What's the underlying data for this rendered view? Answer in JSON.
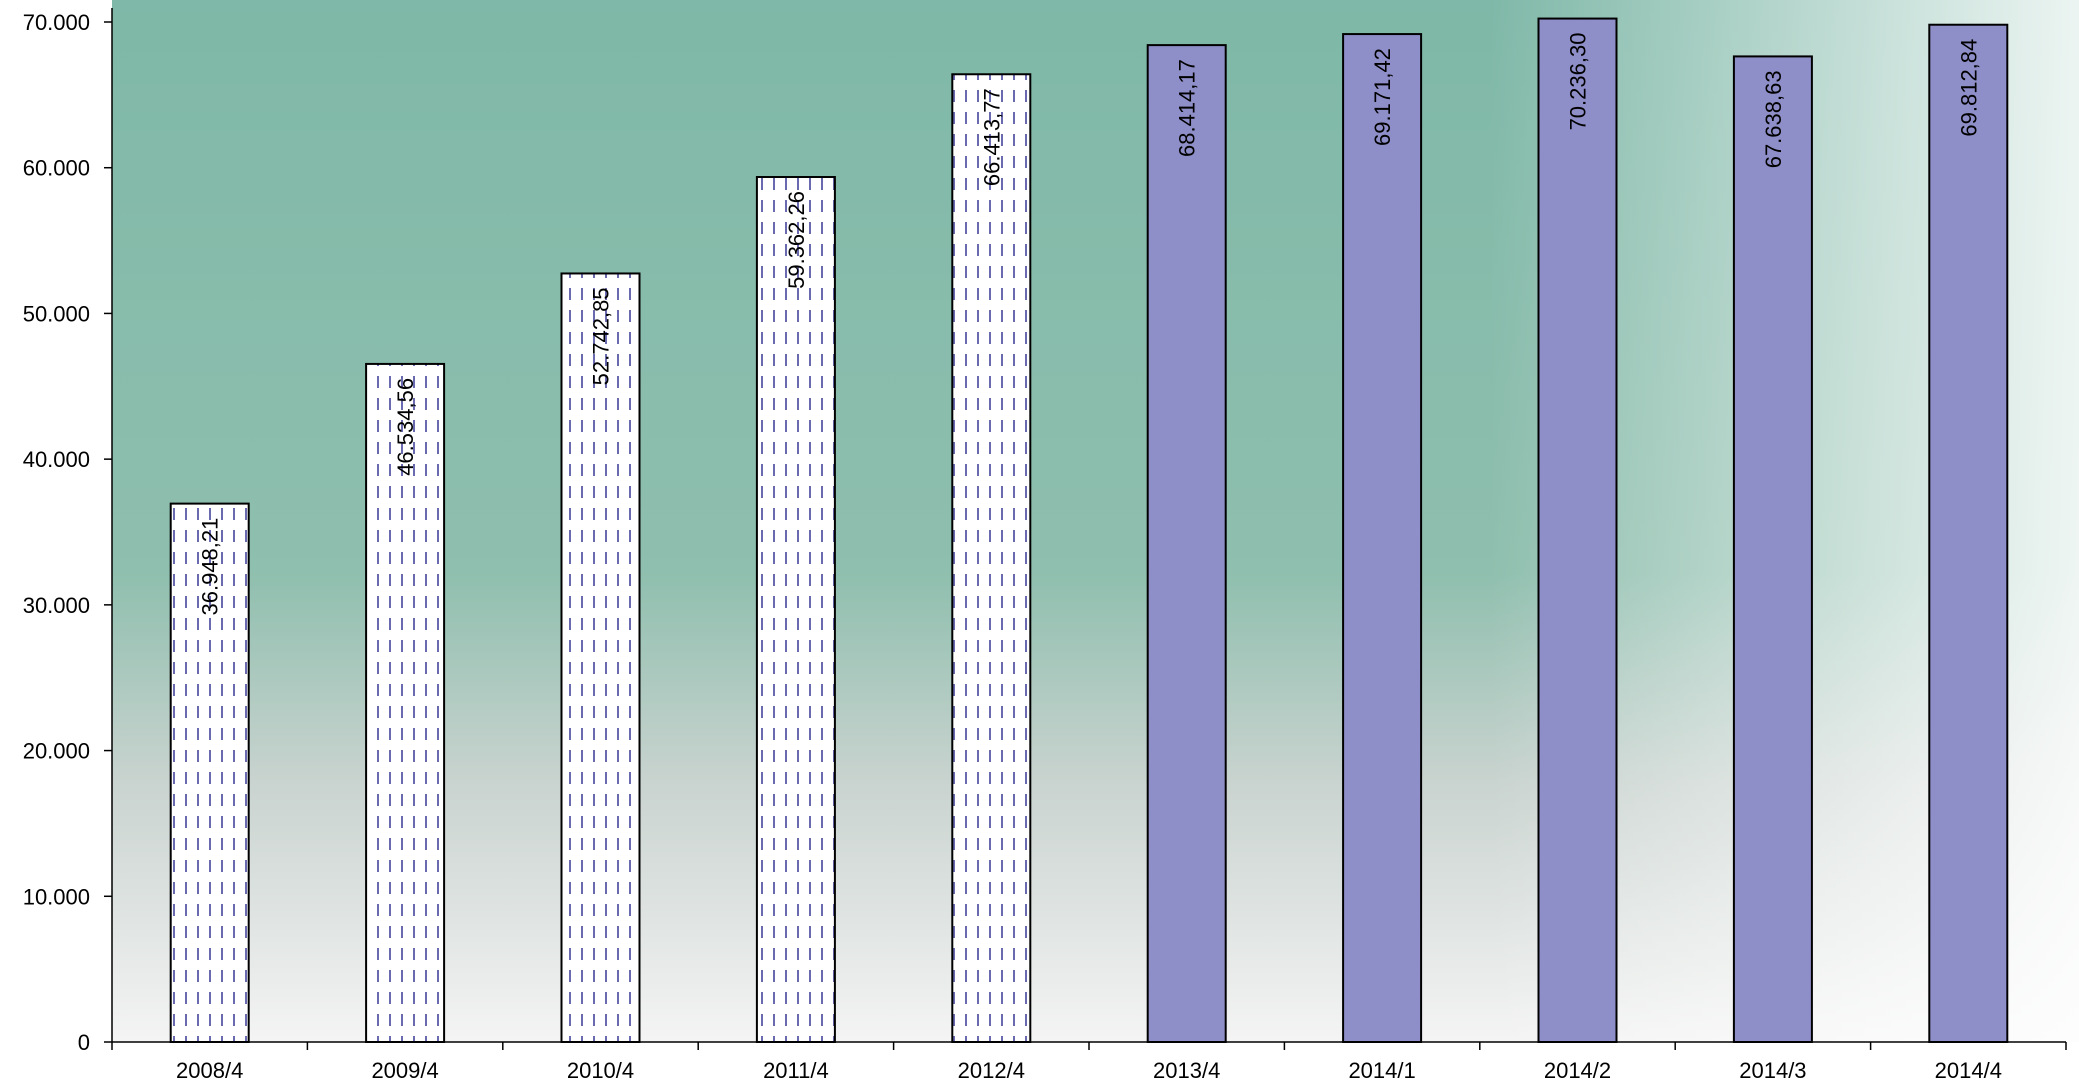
{
  "chart_data": {
    "type": "bar",
    "categories": [
      "2008/4",
      "2009/4",
      "2010/4",
      "2011/4",
      "2012/4",
      "2013/4",
      "2014/1",
      "2014/2",
      "2014/3",
      "2014/4"
    ],
    "values": [
      36948.21,
      46534.56,
      52742.85,
      59362.26,
      66413.77,
      68414.17,
      69171.42,
      70236.3,
      67638.63,
      69812.84
    ],
    "data_labels": [
      "36.948,21",
      "46.534,56",
      "52.742,85",
      "59.362,26",
      "66.413,77",
      "68.414,17",
      "69.171,42",
      "70.236,30",
      "67.638,63",
      "69.812,84"
    ],
    "bar_styles": [
      "dashed-pattern",
      "dashed-pattern",
      "dashed-pattern",
      "dashed-pattern",
      "dashed-pattern",
      "solid",
      "solid",
      "solid",
      "solid",
      "solid"
    ],
    "ylim": [
      0,
      70000
    ],
    "yticks": [
      0,
      10000,
      20000,
      30000,
      40000,
      50000,
      60000,
      70000
    ],
    "ytick_labels": [
      "0",
      "10.000",
      "20.000",
      "30.000",
      "40.000",
      "50.000",
      "60.000",
      "70.000"
    ],
    "title": "",
    "xlabel": "",
    "ylabel": "",
    "grid": false,
    "legend": "none",
    "colors": {
      "solid_bar": "#8e8ec8",
      "pattern_bar_fill": "#ffffff",
      "pattern_dash": "#6a6ab0",
      "bar_outline": "#000000",
      "axis": "#000000",
      "bg_teal": "#7fb8a8",
      "bg_gray": "#d6d9d8"
    }
  }
}
